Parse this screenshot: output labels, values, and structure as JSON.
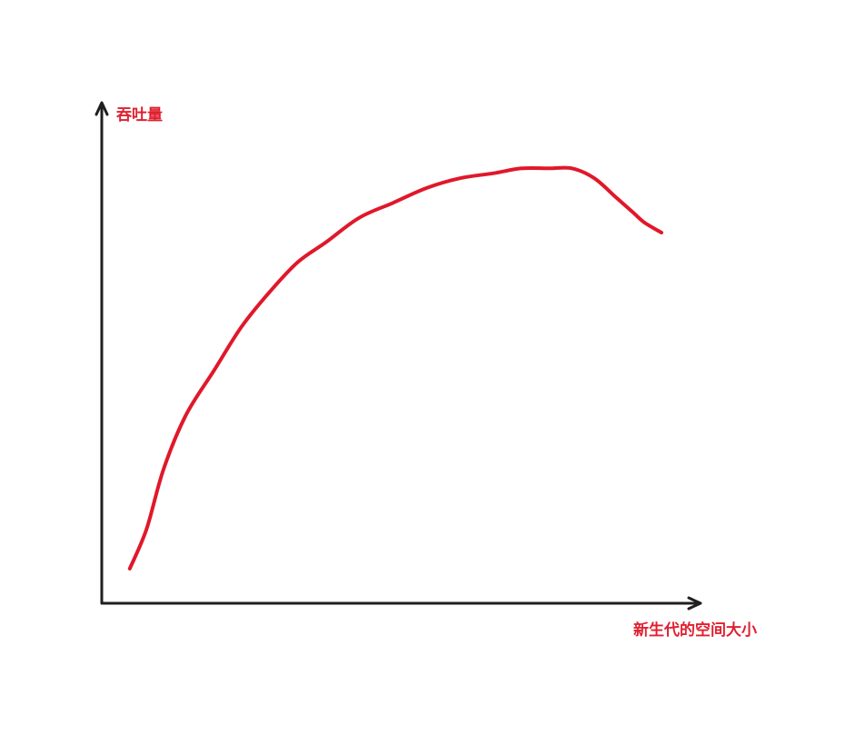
{
  "colors": {
    "axis": "#1f1f1f",
    "curve": "#e0182a",
    "label": "#e02030",
    "background": "#ffffff"
  },
  "chart_data": {
    "type": "line",
    "title": "",
    "xlabel": "新生代的空间大小",
    "ylabel": "吞吐量",
    "grid": false,
    "legend": "none",
    "xlim": [
      0,
      100
    ],
    "ylim": [
      0,
      100
    ],
    "series": [
      {
        "x": [
          5,
          8,
          11,
          15,
          20,
          25,
          30,
          35,
          40,
          46,
          52,
          58,
          64,
          70,
          75,
          80,
          84,
          88,
          92,
          95,
          97,
          100
        ],
        "y": [
          7,
          15,
          27,
          38,
          47,
          56,
          63,
          69,
          73,
          78,
          81,
          84,
          86,
          87,
          88,
          88,
          88,
          86,
          82,
          79,
          77,
          75
        ]
      }
    ]
  }
}
